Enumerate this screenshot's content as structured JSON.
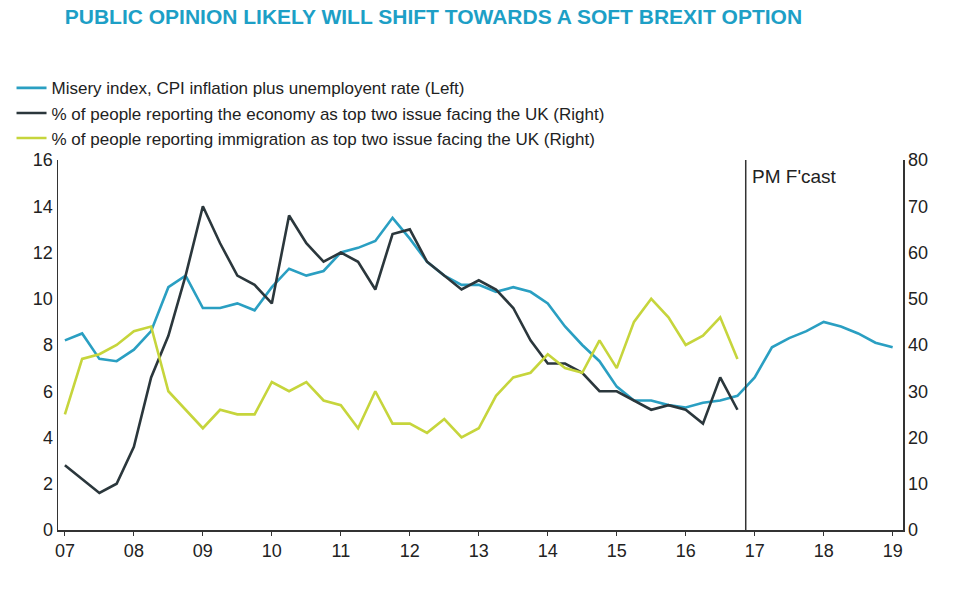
{
  "chart_data": {
    "type": "line",
    "title": "PUBLIC OPINION LIKELY WILL SHIFT TOWARDS A SOFT BREXIT OPTION",
    "x": [
      2007.0,
      2007.25,
      2007.5,
      2007.75,
      2008.0,
      2008.25,
      2008.5,
      2008.75,
      2009.0,
      2009.25,
      2009.5,
      2009.75,
      2010.0,
      2010.25,
      2010.5,
      2010.75,
      2011.0,
      2011.25,
      2011.5,
      2011.75,
      2012.0,
      2012.25,
      2012.5,
      2012.75,
      2013.0,
      2013.25,
      2013.5,
      2013.75,
      2014.0,
      2014.25,
      2014.5,
      2014.75,
      2015.0,
      2015.25,
      2015.5,
      2015.75,
      2016.0,
      2016.25,
      2016.5,
      2016.75,
      2017.0,
      2017.25,
      2017.5,
      2017.75,
      2018.0,
      2018.25,
      2018.5,
      2018.75,
      2019.0
    ],
    "series": [
      {
        "name": "Misery index, CPI inflation plus unemployent rate (Left)",
        "color": "#2a9fc2",
        "axis": "y",
        "values": [
          8.2,
          8.5,
          7.4,
          7.3,
          7.8,
          8.6,
          10.5,
          11.0,
          9.6,
          9.6,
          9.8,
          9.5,
          10.5,
          11.3,
          11.0,
          11.2,
          12.0,
          12.2,
          12.5,
          13.5,
          12.6,
          11.6,
          11.0,
          10.6,
          10.6,
          10.3,
          10.5,
          10.3,
          9.8,
          8.8,
          8.0,
          7.3,
          6.2,
          5.6,
          5.6,
          5.4,
          5.3,
          5.5,
          5.6,
          5.8,
          6.6,
          7.9,
          8.3,
          8.6,
          9.0,
          8.8,
          8.5,
          8.1,
          7.9
        ]
      },
      {
        "name": "% of people reporting the economy as top two issue facing the UK (Right)",
        "color": "#2b373c",
        "axis": "y2",
        "values": [
          14,
          11,
          8,
          10,
          18,
          33,
          42,
          55,
          70,
          62,
          55,
          53,
          49,
          68,
          62,
          58,
          60,
          58,
          52,
          64,
          65,
          58,
          55,
          52,
          54,
          52,
          48,
          41,
          36,
          36,
          34,
          30,
          30,
          28,
          26,
          27,
          26,
          23,
          33,
          26,
          null,
          null,
          null,
          null,
          null,
          null,
          null,
          null,
          null
        ]
      },
      {
        "name": "% of people reporting immigration as top two issue facing the UK (Right)",
        "color": "#c6d53c",
        "axis": "y2",
        "values": [
          25,
          37,
          38,
          40,
          43,
          44,
          30,
          26,
          22,
          26,
          25,
          25,
          32,
          30,
          32,
          28,
          27,
          22,
          30,
          23,
          23,
          21,
          24,
          20,
          22,
          29,
          33,
          34,
          38,
          35,
          34,
          41,
          35,
          45,
          50,
          46,
          40,
          42,
          46,
          37,
          null,
          null,
          null,
          null,
          null,
          null,
          null,
          null,
          null
        ]
      }
    ],
    "xlim": [
      2006.9,
      2019.15
    ],
    "xticks": [
      {
        "value": 2007,
        "label": "07"
      },
      {
        "value": 2008,
        "label": "08"
      },
      {
        "value": 2009,
        "label": "09"
      },
      {
        "value": 2010,
        "label": "10"
      },
      {
        "value": 2011,
        "label": "11"
      },
      {
        "value": 2012,
        "label": "12"
      },
      {
        "value": 2013,
        "label": "13"
      },
      {
        "value": 2014,
        "label": "14"
      },
      {
        "value": 2015,
        "label": "15"
      },
      {
        "value": 2016,
        "label": "16"
      },
      {
        "value": 2017,
        "label": "17"
      },
      {
        "value": 2018,
        "label": "18"
      },
      {
        "value": 2019,
        "label": "19"
      }
    ],
    "ylim": [
      0,
      16
    ],
    "yticks": [
      0,
      2,
      4,
      6,
      8,
      10,
      12,
      14,
      16
    ],
    "y2lim": [
      0,
      80
    ],
    "y2ticks": [
      0,
      10,
      20,
      30,
      40,
      50,
      60,
      70,
      80
    ],
    "grid": false,
    "legend": "top-left",
    "annotations": [
      {
        "text": "PM F'cast",
        "x": 2016.87
      }
    ]
  }
}
